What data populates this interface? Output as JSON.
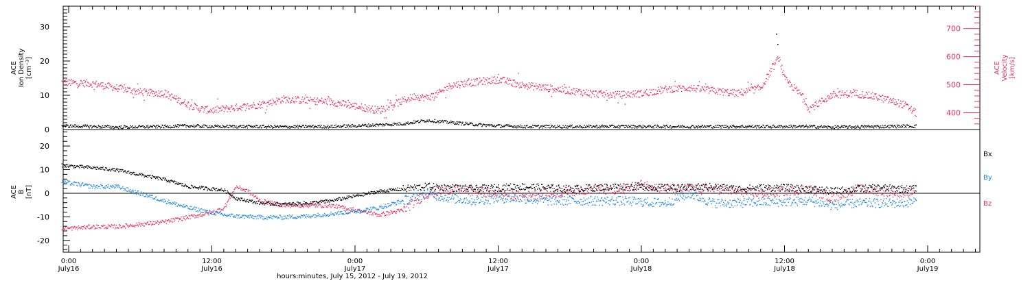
{
  "chart_data": [
    {
      "type": "scatter",
      "panel": "top",
      "ylabel_left": [
        "ACE",
        "Ion Density",
        "[cm⁻³]"
      ],
      "ylabel_right": [
        "ACE",
        "Velocity",
        "[km/s]"
      ],
      "ylim_left": [
        0,
        36
      ],
      "ylim_right": [
        340,
        780
      ],
      "left_ticks": [
        "0",
        "10",
        "20",
        "30"
      ],
      "right_ticks": [
        "400",
        "500",
        "600",
        "700"
      ],
      "colors": {
        "density": "#000000",
        "velocity": "#e8315f"
      },
      "x_hours_label": "hours since 0:00 July16 (axis shows time of day)",
      "series": [
        {
          "name": "Density",
          "x": [
            -0.6,
            2,
            4,
            6,
            8,
            10,
            12,
            14,
            16,
            18,
            20,
            22,
            24,
            26,
            28,
            30,
            32,
            34,
            36,
            38,
            40,
            42,
            44,
            46,
            48,
            50,
            52,
            54,
            56,
            58,
            60,
            62,
            64,
            66,
            68,
            70,
            71
          ],
          "values": [
            1.2,
            1.0,
            0.8,
            0.9,
            1.0,
            1.2,
            1.0,
            1.0,
            1.0,
            0.9,
            1.0,
            1.0,
            1.2,
            1.5,
            1.8,
            2.8,
            2.2,
            1.6,
            1.2,
            1.0,
            1.0,
            1.0,
            1.0,
            1.0,
            1.0,
            1.0,
            1.0,
            1.0,
            1.0,
            1.0,
            1.0,
            1.0,
            0.8,
            0.9,
            1.0,
            1.1,
            1.1
          ],
          "outliers": [
            [
              59.3,
              28
            ],
            [
              59.4,
              25
            ]
          ]
        },
        {
          "name": "Velocity",
          "x": [
            -0.6,
            2,
            4,
            6,
            8,
            9.5,
            11,
            12,
            14,
            16,
            18,
            20,
            22,
            24,
            26,
            28,
            29,
            30,
            31,
            32,
            33,
            34,
            36,
            38,
            40,
            42,
            44,
            46,
            48,
            50,
            52,
            54,
            56,
            58,
            59.5,
            60,
            61.5,
            62,
            64,
            66,
            68,
            70,
            71
          ],
          "values": [
            510,
            505,
            490,
            475,
            470,
            440,
            415,
            410,
            420,
            430,
            450,
            445,
            440,
            425,
            410,
            445,
            460,
            455,
            470,
            500,
            505,
            510,
            520,
            500,
            490,
            480,
            470,
            465,
            470,
            485,
            490,
            480,
            470,
            490,
            600,
            520,
            460,
            415,
            465,
            470,
            455,
            430,
            400
          ]
        }
      ]
    },
    {
      "type": "scatter",
      "panel": "bottom",
      "ylabel_left": [
        "ACE",
        "B",
        "[nT]"
      ],
      "ylim": [
        -25,
        27
      ],
      "left_ticks": [
        "-20",
        "-10",
        "0",
        "10",
        "20"
      ],
      "xlabel": "hours:minutes, July 15, 2012 - July 19, 2012",
      "x_tick_labels": [
        [
          "0:00",
          "July16"
        ],
        [
          "12:00",
          "July16"
        ],
        [
          "0:00",
          "July17"
        ],
        [
          "12:00",
          "July17"
        ],
        [
          "0:00",
          "July18"
        ],
        [
          "12:00",
          "July18"
        ],
        [
          "0:00",
          "July19"
        ]
      ],
      "legend": [
        "Bx",
        "By",
        "Bz"
      ],
      "legend_placement": "right",
      "colors": {
        "Bx": "#000000",
        "By": "#1e88e5",
        "Bz": "#e8315f"
      },
      "series": [
        {
          "name": "Bx",
          "x": [
            -0.6,
            2,
            4,
            6,
            8,
            10,
            12,
            13,
            14,
            15,
            16,
            18,
            20,
            22,
            24,
            26,
            28,
            30,
            32,
            34,
            36,
            38,
            40,
            42,
            44,
            46,
            48,
            50,
            52,
            54,
            56,
            58,
            60,
            62,
            64,
            66,
            68,
            70,
            71
          ],
          "values": [
            12,
            11,
            10,
            8,
            6,
            3,
            2,
            1.5,
            -2,
            -3,
            -4,
            -4.5,
            -4,
            -3,
            -1,
            1,
            2,
            3,
            2.5,
            2,
            2.5,
            3,
            2.5,
            2,
            2.5,
            3,
            3,
            2.5,
            2.5,
            3,
            2,
            2.5,
            2.5,
            2,
            1,
            2,
            2.5,
            2,
            2
          ]
        },
        {
          "name": "By",
          "x": [
            -0.6,
            2,
            4,
            6,
            8,
            10,
            12,
            13,
            14,
            16,
            18,
            20,
            22,
            24,
            26,
            28,
            30,
            32,
            34,
            36,
            38,
            40,
            42,
            44,
            46,
            48,
            50,
            52,
            54,
            56,
            58,
            60,
            62,
            64,
            66,
            68,
            70,
            71
          ],
          "values": [
            5,
            3,
            3,
            0,
            -3,
            -6,
            -8,
            -9,
            -9.5,
            -10,
            -10,
            -9.5,
            -8.5,
            -7.5,
            -6,
            -3,
            0,
            -2,
            -3,
            -2,
            -2,
            -3,
            -3,
            -3,
            -3,
            -3.5,
            -4,
            0,
            -4,
            -4,
            -3.5,
            -3.5,
            -3,
            -5,
            -4,
            -4,
            -4,
            -3
          ]
        },
        {
          "name": "Bz",
          "x": [
            -0.6,
            2,
            4,
            6,
            8,
            10,
            12,
            13,
            14,
            15,
            16,
            18,
            20,
            22,
            24,
            26,
            28,
            30,
            32,
            34,
            36,
            38,
            40,
            42,
            44,
            46,
            48,
            50,
            52,
            54,
            56,
            58,
            60,
            62,
            64,
            66,
            68,
            70,
            71
          ],
          "values": [
            -15,
            -14,
            -14,
            -13,
            -12,
            -10,
            -8,
            -6,
            3,
            1,
            -3,
            -5,
            -5,
            -5,
            -7,
            -9,
            -7,
            0,
            2,
            1,
            0,
            -1,
            0,
            1,
            2,
            1,
            4,
            2,
            2,
            2,
            1,
            0,
            1,
            2,
            -2,
            2,
            1,
            0,
            2
          ]
        }
      ]
    }
  ]
}
